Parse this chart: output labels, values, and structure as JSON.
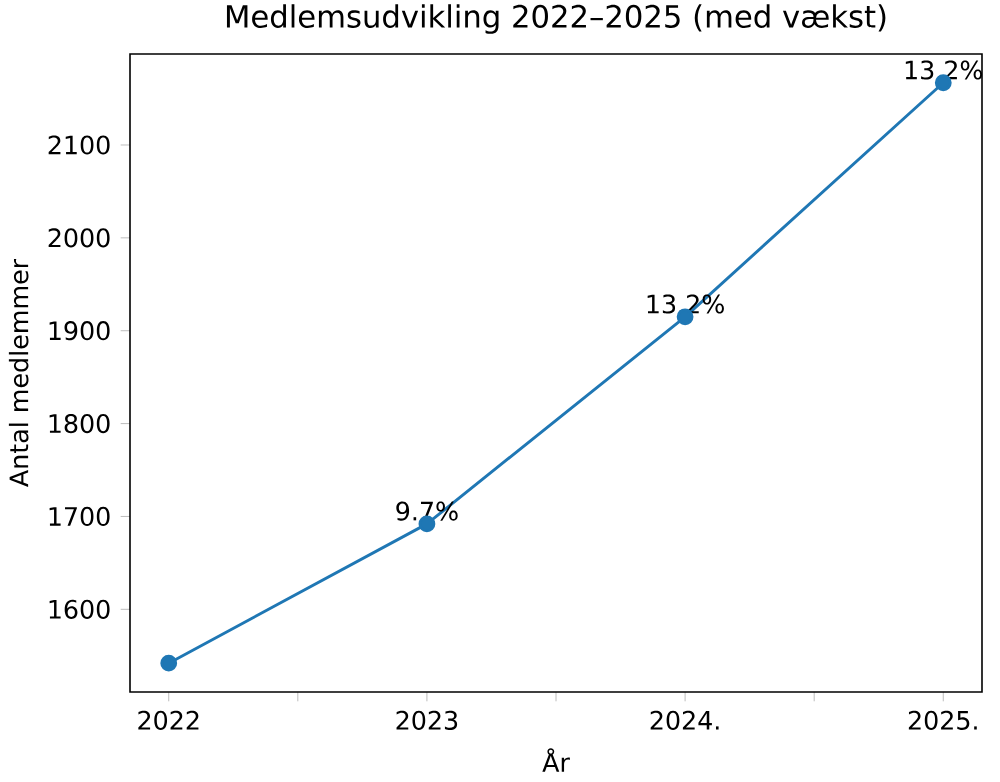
{
  "chart_data": {
    "type": "line",
    "title": "Medlemsudvikling 2022–2025 (med vækst)",
    "xlabel": "År",
    "ylabel": "Antal medlemmer",
    "x": [
      2022,
      2023,
      2024,
      2025
    ],
    "series": [
      {
        "color": "#1f77b4",
        "values": [
          1542,
          1692,
          1915,
          2167
        ]
      }
    ],
    "marker": "circle",
    "line_style": "solid",
    "grid": false,
    "xlim": [
      2021.85,
      2025.15
    ],
    "ylim": [
      1511,
      2198
    ],
    "xticks": [
      2022,
      {
        "value": 2022.5,
        "label": null
      },
      2023,
      {
        "value": 2023.5,
        "label": null
      },
      {
        "value": 2024,
        "label": "2024."
      },
      {
        "value": 2024.5,
        "label": null
      },
      {
        "value": 2025,
        "label": "2025."
      }
    ],
    "yticks": [
      1600,
      1700,
      1800,
      1900,
      2000,
      2100
    ],
    "annotations": [
      {
        "text": "9.7%",
        "x": 2023,
        "y": 1692
      },
      {
        "text": "13.2%",
        "x": 2024,
        "y": 1915
      },
      {
        "text": "13.2%",
        "x": 2025,
        "y": 2167
      }
    ]
  }
}
